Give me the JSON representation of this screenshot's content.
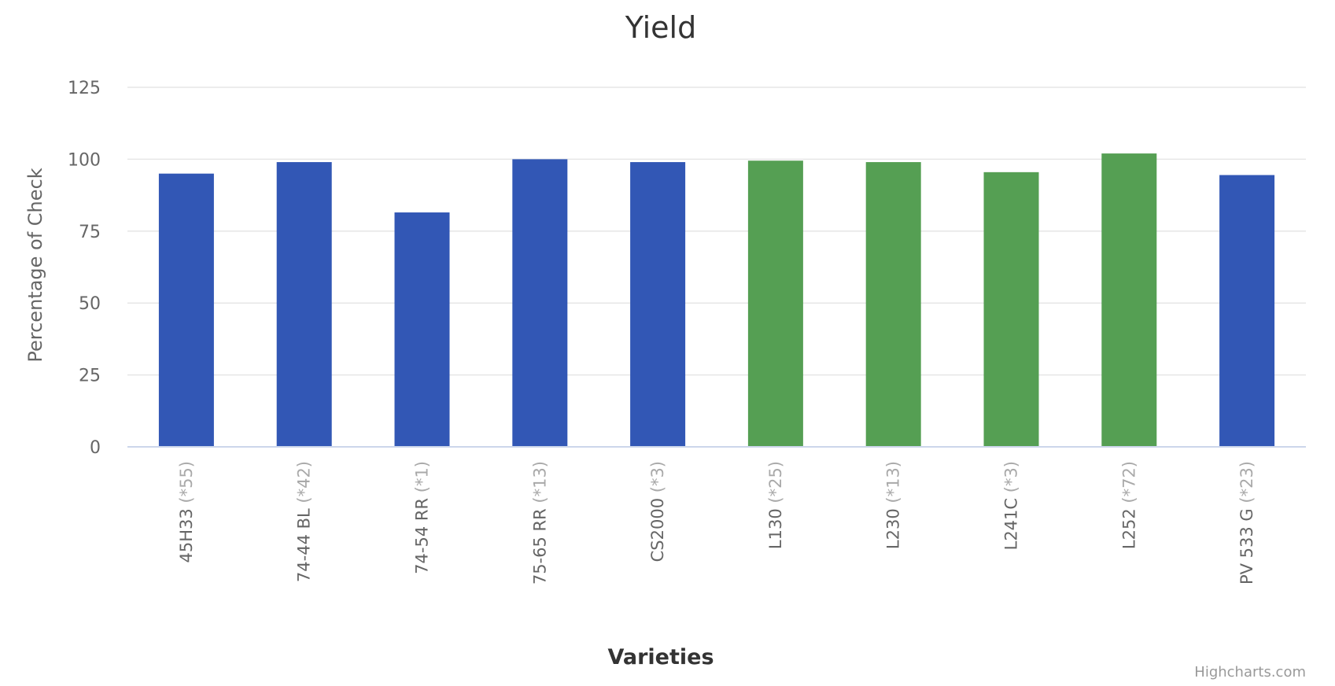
{
  "chart_data": {
    "type": "bar",
    "title": "Yield",
    "xlabel": "Varieties",
    "ylabel": "Percentage of Check",
    "ylim": [
      0,
      125
    ],
    "yticks": [
      0,
      25,
      50,
      75,
      100,
      125
    ],
    "grid": true,
    "categories": [
      {
        "name": "45H33",
        "note": "(*55)"
      },
      {
        "name": "74-44 BL",
        "note": "(*42)"
      },
      {
        "name": "74-54 RR",
        "note": "(*1)"
      },
      {
        "name": "75-65 RR",
        "note": "(*13)"
      },
      {
        "name": "CS2000",
        "note": "(*3)"
      },
      {
        "name": "L130",
        "note": "(*25)"
      },
      {
        "name": "L230",
        "note": "(*13)"
      },
      {
        "name": "L241C",
        "note": "(*3)"
      },
      {
        "name": "L252",
        "note": "(*72)"
      },
      {
        "name": "PV 533 G",
        "note": "(*23)"
      }
    ],
    "values": [
      95,
      99,
      81.5,
      100,
      99,
      99.5,
      99,
      95.5,
      102,
      94.5
    ],
    "colors": [
      "#3257b5",
      "#3257b5",
      "#3257b5",
      "#3257b5",
      "#3257b5",
      "#559f53",
      "#559f53",
      "#559f53",
      "#559f53",
      "#3257b5"
    ]
  },
  "credits": "Highcharts.com"
}
